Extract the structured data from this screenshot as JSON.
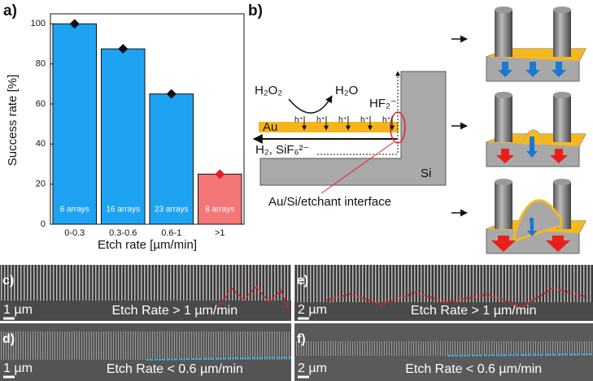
{
  "chart_data": {
    "type": "bar",
    "panel_label": "a)",
    "xlabel": "Etch rate [µm/min]",
    "ylabel": "Success rate [%]",
    "categories": [
      "0-0.3",
      "0.3-0.6",
      "0.6-1",
      ">1"
    ],
    "values": [
      100,
      87.5,
      65,
      25
    ],
    "bar_labels": [
      "6 arrays",
      "16 arrays",
      "23 arrays",
      "8 arrays"
    ],
    "colors": [
      "#1ea2f2",
      "#1ea2f2",
      "#1ea2f2",
      "#f47676"
    ],
    "marker_colors": [
      "#111111",
      "#111111",
      "#111111",
      "#e4202a"
    ],
    "ylim": [
      0,
      105
    ],
    "yticks": [
      0,
      20,
      40,
      60,
      80,
      100
    ]
  },
  "diagram": {
    "panel_label": "b)",
    "h2o2": "H₂O₂",
    "h2o": "H₂O",
    "hf2": "HF₂⁻",
    "au": "Au",
    "holes": [
      "h⁺",
      "h⁺",
      "h⁺",
      "h⁺",
      "h⁺"
    ],
    "products": "H₂, SiF₆²⁻",
    "si": "Si",
    "interface": "Au/Si/etchant interface"
  },
  "sem_panels": [
    {
      "label": "c)",
      "scale": "1 µm",
      "caption": "Etch Rate > 1 µm/min"
    },
    {
      "label": "d)",
      "scale": "1 µm",
      "caption": "Etch Rate < 0.6 µm/min"
    },
    {
      "label": "e)",
      "scale": "2 µm",
      "caption": "Etch Rate > 1 µm/min"
    },
    {
      "label": "f)",
      "scale": "2 µm",
      "caption": "Etch Rate < 0.6 µm/min"
    }
  ]
}
